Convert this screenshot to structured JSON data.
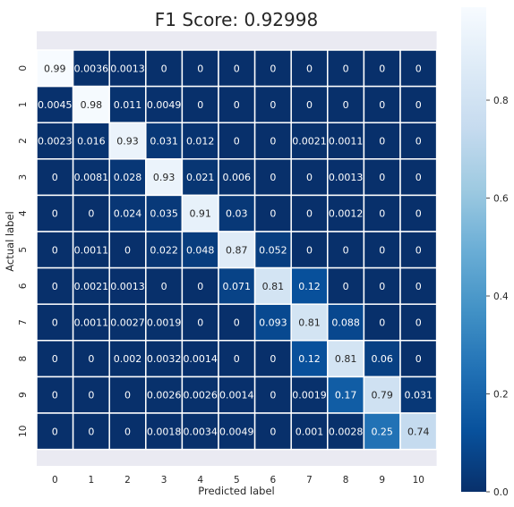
{
  "chart_data": {
    "type": "heatmap",
    "title": "F1 Score: 0.92998",
    "xlabel": "Predicted label",
    "ylabel": "Actual label",
    "x_categories": [
      "0",
      "1",
      "2",
      "3",
      "4",
      "5",
      "6",
      "7",
      "8",
      "9",
      "10"
    ],
    "y_categories": [
      "0",
      "1",
      "2",
      "3",
      "4",
      "5",
      "6",
      "7",
      "8",
      "9",
      "10"
    ],
    "values": [
      [
        0.99,
        0.0036,
        0.0013,
        0,
        0,
        0,
        0,
        0,
        0,
        0,
        0
      ],
      [
        0.0045,
        0.98,
        0.011,
        0.0049,
        0,
        0,
        0,
        0,
        0,
        0,
        0
      ],
      [
        0.0023,
        0.016,
        0.93,
        0.031,
        0.012,
        0,
        0,
        0.0021,
        0.0011,
        0,
        0
      ],
      [
        0,
        0.0081,
        0.028,
        0.93,
        0.021,
        0.006,
        0,
        0,
        0.0013,
        0,
        0
      ],
      [
        0,
        0,
        0.024,
        0.035,
        0.91,
        0.03,
        0,
        0,
        0.0012,
        0,
        0
      ],
      [
        0,
        0.0011,
        0,
        0.022,
        0.048,
        0.87,
        0.052,
        0,
        0,
        0,
        0
      ],
      [
        0,
        0.0021,
        0.0013,
        0,
        0,
        0.071,
        0.81,
        0.12,
        0,
        0,
        0
      ],
      [
        0,
        0.0011,
        0.0027,
        0.0019,
        0,
        0,
        0.093,
        0.81,
        0.088,
        0,
        0
      ],
      [
        0,
        0,
        0.002,
        0.0032,
        0.0014,
        0,
        0,
        0.12,
        0.81,
        0.06,
        0
      ],
      [
        0,
        0,
        0,
        0.0026,
        0.0026,
        0.0014,
        0,
        0.0019,
        0.17,
        0.79,
        0.031
      ],
      [
        0,
        0,
        0,
        0.0018,
        0.0034,
        0.0049,
        0,
        0.001,
        0.0028,
        0.25,
        0.74
      ]
    ],
    "labels": [
      [
        "0.99",
        "0.0036",
        "0.0013",
        "0",
        "0",
        "0",
        "0",
        "0",
        "0",
        "0",
        "0"
      ],
      [
        "0.0045",
        "0.98",
        "0.011",
        "0.0049",
        "0",
        "0",
        "0",
        "0",
        "0",
        "0",
        "0"
      ],
      [
        "0.0023",
        "0.016",
        "0.93",
        "0.031",
        "0.012",
        "0",
        "0",
        "0.0021",
        "0.0011",
        "0",
        "0"
      ],
      [
        "0",
        "0.0081",
        "0.028",
        "0.93",
        "0.021",
        "0.006",
        "0",
        "0",
        "0.0013",
        "0",
        "0"
      ],
      [
        "0",
        "0",
        "0.024",
        "0.035",
        "0.91",
        "0.03",
        "0",
        "0",
        "0.0012",
        "0",
        "0"
      ],
      [
        "0",
        "0.0011",
        "0",
        "0.022",
        "0.048",
        "0.87",
        "0.052",
        "0",
        "0",
        "0",
        "0"
      ],
      [
        "0",
        "0.0021",
        "0.0013",
        "0",
        "0",
        "0.071",
        "0.81",
        "0.12",
        "0",
        "0",
        "0"
      ],
      [
        "0",
        "0.0011",
        "0.0027",
        "0.0019",
        "0",
        "0",
        "0.093",
        "0.81",
        "0.088",
        "0",
        "0"
      ],
      [
        "0",
        "0",
        "0.002",
        "0.0032",
        "0.0014",
        "0",
        "0",
        "0.12",
        "0.81",
        "0.06",
        "0"
      ],
      [
        "0",
        "0",
        "0",
        "0.0026",
        "0.0026",
        "0.0014",
        "0",
        "0.0019",
        "0.17",
        "0.79",
        "0.031"
      ],
      [
        "0",
        "0",
        "0",
        "0.0018",
        "0.0034",
        "0.0049",
        "0",
        "0.001",
        "0.0028",
        "0.25",
        "0.74"
      ]
    ],
    "colormap": "Blues_r",
    "vmin": 0,
    "vmax": 0.99,
    "colorbar": {
      "ticks": [
        0.0,
        0.2,
        0.4,
        0.6,
        0.8
      ],
      "tick_labels": [
        "0.0",
        "0.2",
        "0.4",
        "0.6",
        "0.8"
      ]
    },
    "colors": {
      "background": "#eaeaf2",
      "cell_border": "#ffffff",
      "dark_text": "#262626",
      "light_text": "#ffffff"
    }
  }
}
